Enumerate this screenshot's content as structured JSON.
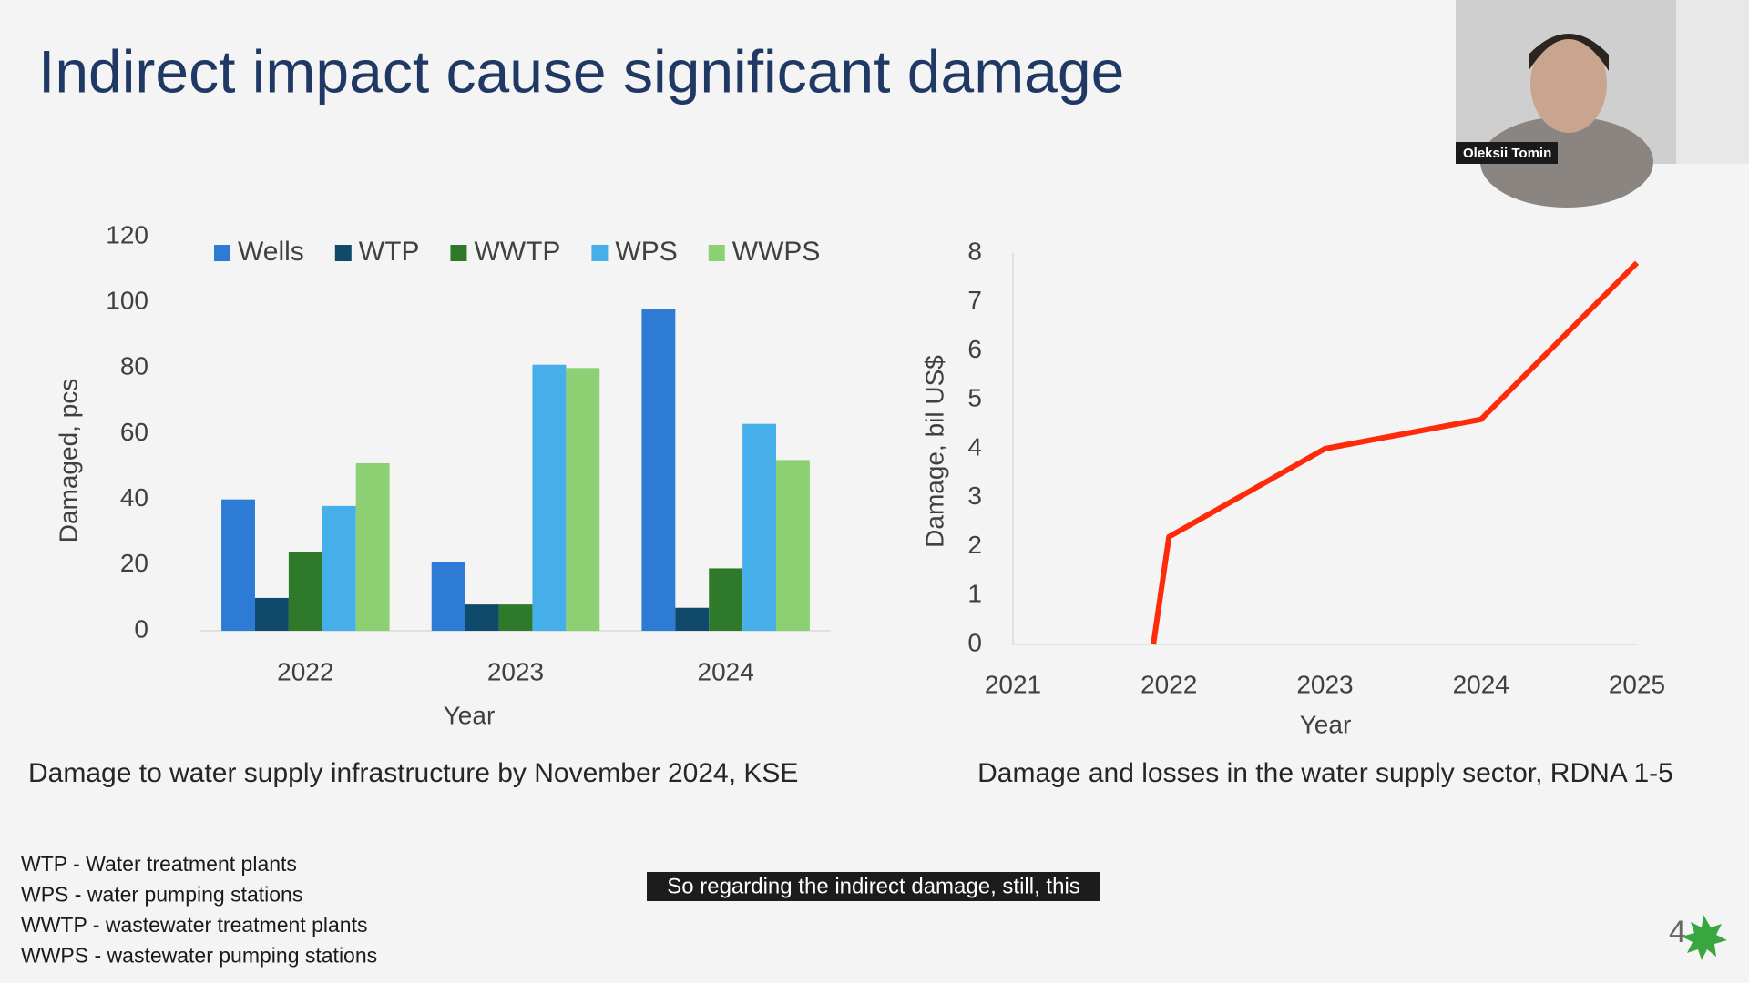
{
  "title": "Indirect impact cause significant damage",
  "speaker": "Oleksii Tomin",
  "chart_data": [
    {
      "type": "bar",
      "categories": [
        "2022",
        "2023",
        "2024"
      ],
      "series": [
        {
          "name": "Wells",
          "color": "#2e7bd6",
          "values": [
            40,
            21,
            98
          ]
        },
        {
          "name": "WTP",
          "color": "#0f4a6b",
          "values": [
            10,
            8,
            7
          ]
        },
        {
          "name": "WWTP",
          "color": "#2f7a2a",
          "values": [
            24,
            8,
            19
          ]
        },
        {
          "name": "WPS",
          "color": "#46aee8",
          "values": [
            38,
            81,
            63
          ]
        },
        {
          "name": "WWPS",
          "color": "#8dcf73",
          "values": [
            51,
            80,
            52
          ]
        }
      ],
      "ylim": [
        0,
        120
      ],
      "yticks": [
        0,
        20,
        40,
        60,
        80,
        100,
        120
      ],
      "x_label": "Year",
      "y_label": "Damaged, pcs",
      "caption": "Damage to water supply infrastructure by November 2024, KSE"
    },
    {
      "type": "line",
      "x": [
        2021.9,
        2022,
        2023,
        2024,
        2025
      ],
      "values": [
        0,
        2.2,
        4,
        4.6,
        7.8
      ],
      "color": "#ff2a0a",
      "xlim": [
        2021,
        2025
      ],
      "xticks": [
        2021,
        2022,
        2023,
        2024,
        2025
      ],
      "ylim": [
        0,
        8
      ],
      "yticks": [
        0,
        1,
        2,
        3,
        4,
        5,
        6,
        7,
        8
      ],
      "x_label": "Year",
      "y_label": "Damage, bil US$",
      "caption": "Damage and losses in the water supply sector, RDNA 1-5"
    }
  ],
  "notes": [
    "WTP - Water treatment plants",
    "WPS - water pumping stations",
    "WWTP - wastewater treatment plants",
    "WWPS - wastewater pumping stations"
  ],
  "subtitle": "So regarding the indirect damage, still, this",
  "page_number": "4"
}
